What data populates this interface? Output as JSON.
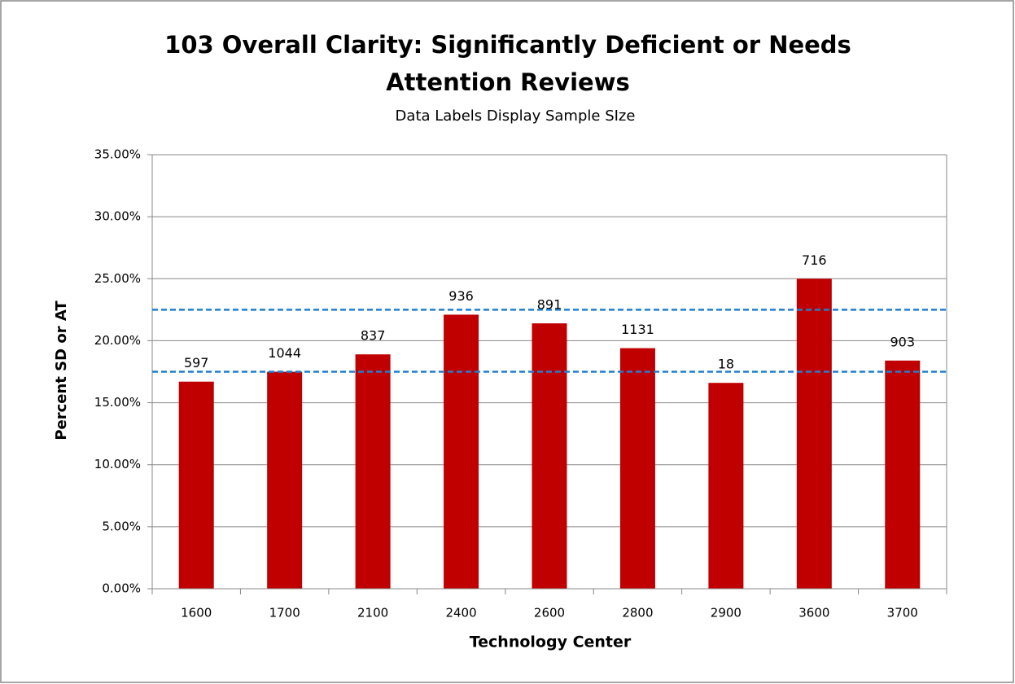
{
  "chart_data": {
    "type": "bar",
    "title": "103 Overall Clarity: Significantly Deficient or Needs Attention Reviews",
    "subtitle": "Data Labels Display Sample SIze",
    "x_label": "Technology Center",
    "y_label": "Percent SD or AT",
    "categories": [
      "1600",
      "1700",
      "2100",
      "2400",
      "2600",
      "2800",
      "2900",
      "3600",
      "3700"
    ],
    "values": [
      16.7,
      17.5,
      18.9,
      22.1,
      21.4,
      19.4,
      16.6,
      25.0,
      18.4
    ],
    "sample_sizes": [
      597,
      1044,
      837,
      936,
      891,
      1131,
      18,
      716,
      903
    ],
    "color": "#c00000",
    "reference_lines": [
      22.5,
      17.5
    ],
    "reference_color": "#1f7fd0",
    "ylim": [
      0,
      35
    ],
    "yticks": [
      {
        "value": 0,
        "label": "0.00%"
      },
      {
        "value": 5,
        "label": "5.00%"
      },
      {
        "value": 10,
        "label": "10.00%"
      },
      {
        "value": 15,
        "label": "15.00%"
      },
      {
        "value": 20,
        "label": "20.00%"
      },
      {
        "value": 25,
        "label": "25.00%"
      },
      {
        "value": 30,
        "label": "30.00%"
      },
      {
        "value": 35,
        "label": "35.00%"
      }
    ],
    "grid": true
  }
}
